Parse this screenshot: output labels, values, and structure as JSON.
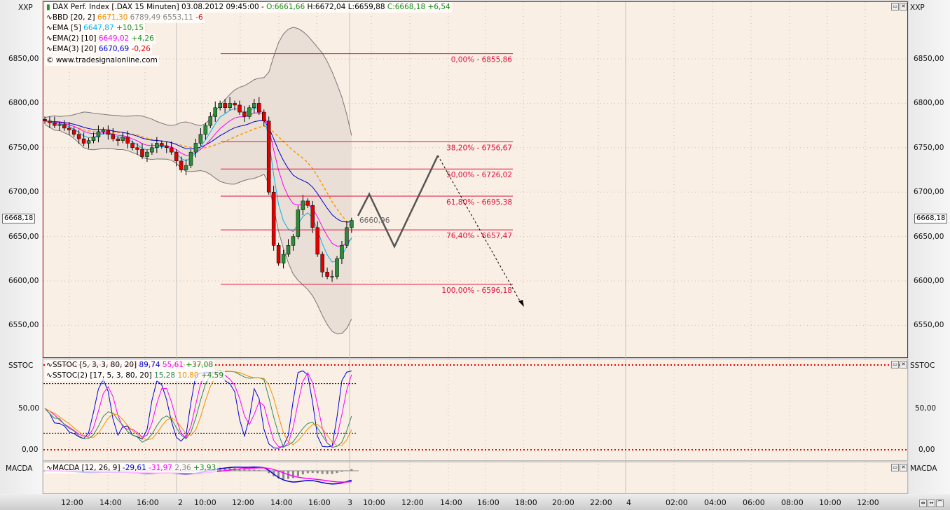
{
  "header": {
    "instrument": "DAX Perf. Index [.DAX  15 Minuten] 03.08.2012 09:45:00 -",
    "open": "O:6661,66",
    "high": "H:6672,04",
    "low": "L:6659,88",
    "close": "C:6668,18",
    "change": "+6,54"
  },
  "legend": {
    "bbd": {
      "name": "BBD [20, 2]",
      "v1": "6671,30",
      "v2": "6789,49 6553,11",
      "v3": "-6"
    },
    "ema5": {
      "name": "EMA [5]",
      "v1": "6647,87",
      "v2": "+10,15"
    },
    "ema10": {
      "name": "EMA(2) [10]",
      "v1": "6649,02",
      "v2": "+4,26"
    },
    "ema20": {
      "name": "EMA(3) [20]",
      "v1": "6670,69",
      "v2": "-0,26"
    },
    "copyright": "© www.tradesignalonline.com"
  },
  "axes": {
    "scale_label": "XXP",
    "price_ticks": [
      "6850,00",
      "6800,00",
      "6750,00",
      "6700,00",
      "6650,00",
      "6600,00",
      "6550,00"
    ],
    "current_price": "6668,18",
    "sstoc_label": "SSTOC",
    "sstoc_ticks": [
      "50,00",
      "0,00"
    ],
    "macda_label": "MACDA",
    "time_ticks": [
      "12:00",
      "14:00",
      "16:00",
      "2",
      "10:00",
      "12:00",
      "14:00",
      "16:00",
      "3",
      "10:00",
      "12:00",
      "14:00",
      "16:00",
      "18:00",
      "20:00",
      "22:00",
      "4",
      "02:00",
      "04:00",
      "06:00",
      "08:00",
      "10:00",
      "12:00"
    ]
  },
  "fibonacci": [
    {
      "label": "0,00% - 6855,86",
      "price": 6855.86
    },
    {
      "label": "38,20% - 6756,67",
      "price": 6756.67
    },
    {
      "label": "50,00% - 6726,02",
      "price": 6726.02
    },
    {
      "label": "61,80% - 6695,38",
      "price": 6695.38
    },
    {
      "label": "76,40% - 6657,47",
      "price": 6657.47
    },
    {
      "label": "100,00% - 6596,18",
      "price": 6596.18
    }
  ],
  "projection_label": "6660,96",
  "sstoc": {
    "name": "SSTOC [5, 3, 3, 80, 20]",
    "v1": "89,74",
    "v2": "55,61",
    "v3": "+37,08",
    "name2": "SSTOC(2) [17, 5, 3, 80, 20]",
    "w1": "15,28",
    "w2": "10,80",
    "w3": "+4,59"
  },
  "macda": {
    "name": "MACDA [12, 26, 9]",
    "v1": "-29,61",
    "v2": "-31,97",
    "v3": "2,36",
    "v4": "+3,93"
  },
  "colors": {
    "up": "#2e8b3a",
    "down": "#e00000",
    "ema5": "#00b4f0",
    "ema10": "#ff00ff",
    "ema20": "#0000cc",
    "bbmid": "#ff9900",
    "fib": "#e0103c"
  },
  "closes": [
    6780,
    6778,
    6775,
    6776,
    6772,
    6770,
    6765,
    6760,
    6755,
    6758,
    6762,
    6768,
    6770,
    6765,
    6760,
    6758,
    6762,
    6755,
    6750,
    6748,
    6740,
    6745,
    6750,
    6755,
    6752,
    6750,
    6745,
    6735,
    6725,
    6730,
    6745,
    6755,
    6765,
    6775,
    6785,
    6795,
    6800,
    6795,
    6800,
    6798,
    6790,
    6785,
    6795,
    6800,
    6790,
    6780,
    6700,
    6640,
    6620,
    6630,
    6640,
    6650,
    6680,
    6690,
    6685,
    6660,
    6630,
    6610,
    6605,
    6605,
    6625,
    6640,
    6660,
    6668.18
  ]
}
